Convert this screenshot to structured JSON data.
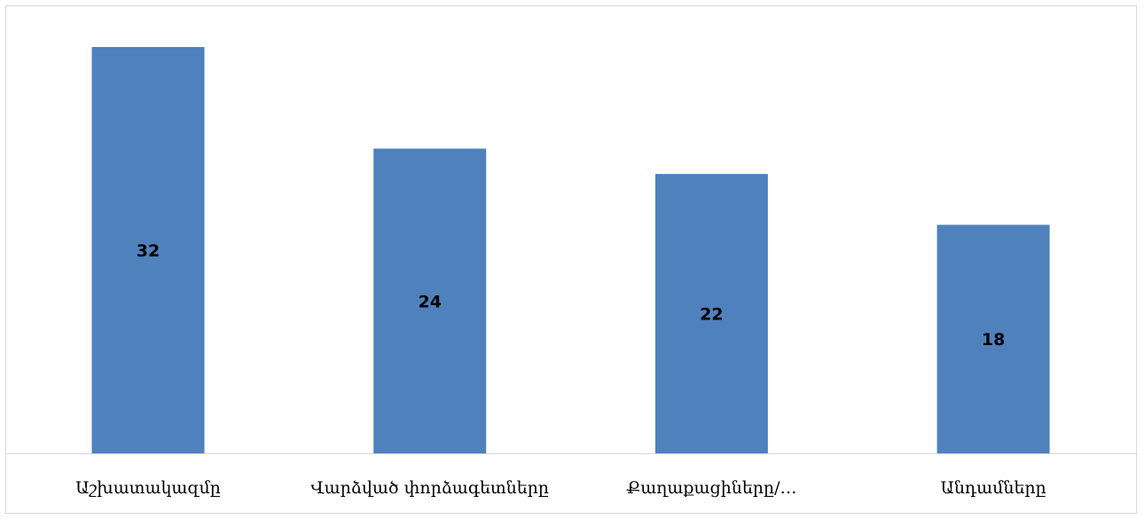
{
  "chart_data": {
    "type": "bar",
    "categories": [
      "Աշխատակազմը",
      "Վարձված փորձագետները",
      "Քաղաքացիները/…",
      "Անդամները"
    ],
    "values": [
      32,
      24,
      22,
      18
    ],
    "title": "",
    "xlabel": "",
    "ylabel": "",
    "ylim": [
      0,
      34
    ],
    "grid": false,
    "data_labels": "center",
    "colors": {
      "bar": "#4f81bd",
      "axis": "#d9d9d9",
      "text": "#000000"
    }
  }
}
